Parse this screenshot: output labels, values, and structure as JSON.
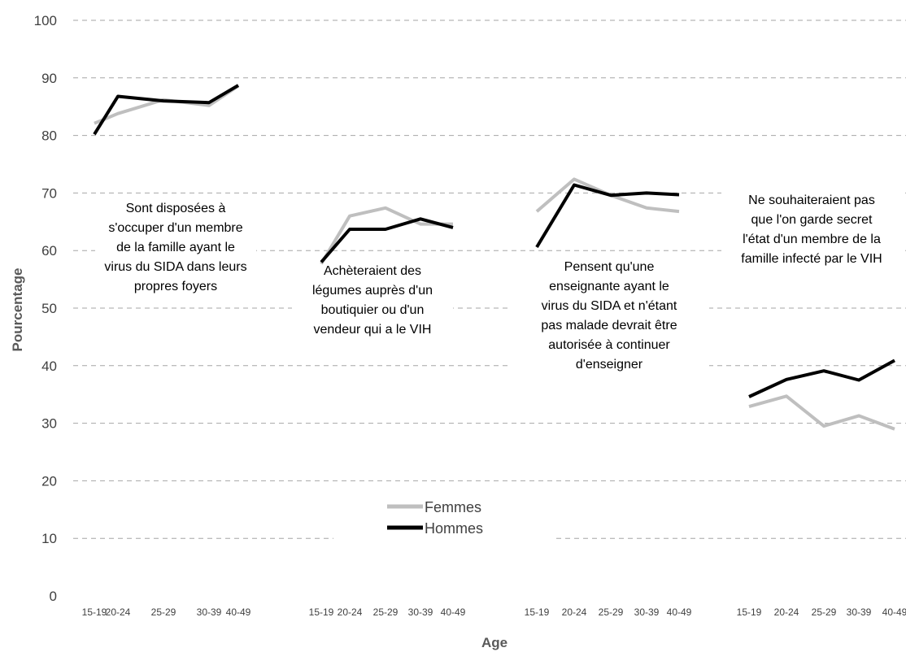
{
  "chart_data": {
    "type": "line",
    "xlabel": "Age",
    "ylabel": "Pourcentage",
    "ylim": [
      0,
      100
    ],
    "yticks": [
      "0",
      "10",
      "20",
      "30",
      "40",
      "50",
      "60",
      "70",
      "80",
      "90",
      "100"
    ],
    "grid": true,
    "legend_position": "bottom-center",
    "colors": {
      "Femmes": "#bfbfbf",
      "Hommes": "#000000"
    },
    "panels": [
      {
        "annotation": [
          "Sont disposées à",
          "s'occuper d'un membre",
          "de la famille ayant le",
          "virus du SIDA dans leurs",
          "propres foyers"
        ],
        "categories": [
          "15-19",
          "20-24",
          "25-29",
          "30-39",
          "40-49"
        ],
        "series": [
          {
            "name": "Femmes",
            "values": [
              82.1,
              83.8,
              86.2,
              85.2,
              88.6
            ]
          },
          {
            "name": "Hommes",
            "values": [
              80.2,
              86.8,
              86.0,
              85.7,
              88.7
            ]
          }
        ]
      },
      {
        "annotation": [
          "Achèteraient des",
          "légumes auprès d'un",
          "boutiquier ou d'un",
          "vendeur qui a le VIH"
        ],
        "categories": [
          "15-19",
          "20-24",
          "25-29",
          "30-39",
          "40-49"
        ],
        "series": [
          {
            "name": "Femmes",
            "values": [
              57.7,
              66.0,
              67.4,
              64.6,
              64.6
            ]
          },
          {
            "name": "Hommes",
            "values": [
              58.0,
              63.7,
              63.7,
              65.5,
              64.0
            ]
          }
        ]
      },
      {
        "annotation": [
          "Pensent qu'une",
          "enseignante ayant le",
          "virus du SIDA et n'étant",
          "pas malade devrait être",
          "autorisée à continuer",
          "d'enseigner"
        ],
        "categories": [
          "15-19",
          "20-24",
          "25-29",
          "30-39",
          "40-49"
        ],
        "series": [
          {
            "name": "Femmes",
            "values": [
              66.8,
              72.4,
              69.6,
              67.4,
              66.8
            ]
          },
          {
            "name": "Hommes",
            "values": [
              60.6,
              71.4,
              69.6,
              70.0,
              69.7
            ]
          }
        ]
      },
      {
        "annotation": [
          "Ne souhaiteraient pas",
          "que l'on garde secret",
          "l'état d'un membre de la",
          "famille infecté par le VIH"
        ],
        "categories": [
          "15-19",
          "20-24",
          "25-29",
          "30-39",
          "40-49"
        ],
        "series": [
          {
            "name": "Femmes",
            "values": [
              32.9,
              34.7,
              29.5,
              31.3,
              29.0
            ]
          },
          {
            "name": "Hommes",
            "values": [
              34.6,
              37.6,
              39.1,
              37.5,
              40.9
            ]
          }
        ]
      }
    ],
    "legend": [
      "Femmes",
      "Hommes"
    ]
  }
}
